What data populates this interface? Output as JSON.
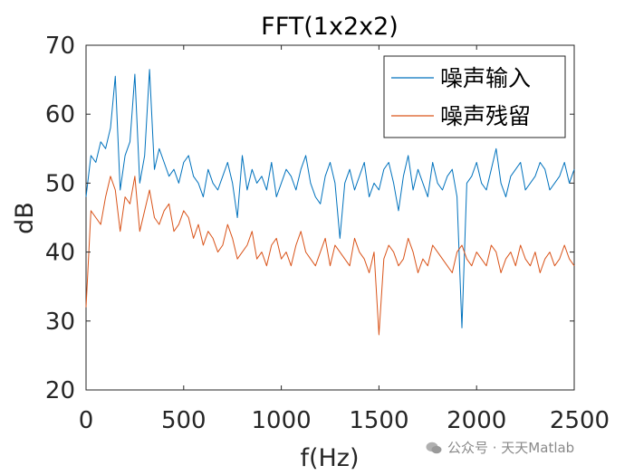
{
  "chart_data": {
    "type": "line",
    "title": "FFT(1x2x2)",
    "xlabel": "f(Hz)",
    "ylabel": "dB",
    "xlim": [
      0,
      2500
    ],
    "ylim": [
      20,
      70
    ],
    "xticks": [
      "0",
      "500",
      "1000",
      "1500",
      "2000",
      "2500"
    ],
    "yticks": [
      "20",
      "30",
      "40",
      "50",
      "60",
      "70"
    ],
    "legend_position": "top-right",
    "x": [
      0,
      25,
      50,
      75,
      100,
      125,
      150,
      175,
      200,
      225,
      250,
      275,
      300,
      325,
      350,
      375,
      400,
      425,
      450,
      475,
      500,
      525,
      550,
      575,
      600,
      625,
      650,
      675,
      700,
      725,
      750,
      775,
      800,
      825,
      850,
      875,
      900,
      925,
      950,
      975,
      1000,
      1025,
      1050,
      1075,
      1100,
      1125,
      1150,
      1175,
      1200,
      1225,
      1250,
      1275,
      1300,
      1325,
      1350,
      1375,
      1400,
      1425,
      1450,
      1475,
      1500,
      1525,
      1550,
      1575,
      1600,
      1625,
      1650,
      1675,
      1700,
      1725,
      1750,
      1775,
      1800,
      1825,
      1850,
      1875,
      1900,
      1925,
      1950,
      1975,
      2000,
      2025,
      2050,
      2075,
      2100,
      2125,
      2150,
      2175,
      2200,
      2225,
      2250,
      2275,
      2300,
      2325,
      2350,
      2375,
      2400,
      2425,
      2450,
      2475,
      2500
    ],
    "series": [
      {
        "name": "噪声输入",
        "color": "#0072BD",
        "values": [
          48,
          54,
          53,
          56,
          55,
          58,
          65.5,
          49,
          54,
          56,
          65.8,
          50,
          54,
          66.5,
          52,
          55,
          53,
          51,
          52,
          50,
          53,
          54,
          51,
          50,
          48,
          52,
          50,
          49,
          51,
          53,
          50,
          45,
          54,
          49,
          52,
          50,
          51,
          49,
          53,
          48,
          50,
          52,
          51,
          49,
          52,
          54,
          50,
          48,
          47,
          51,
          53,
          50,
          42,
          50,
          52,
          49,
          51,
          53,
          48,
          50,
          49,
          52,
          53,
          50,
          46,
          51,
          54,
          49,
          52,
          50,
          48,
          53,
          50,
          49,
          51,
          52,
          48,
          29,
          50,
          51,
          53,
          50,
          49,
          52,
          55,
          50,
          48,
          51,
          52,
          53,
          49,
          50,
          51,
          53,
          52,
          49,
          50,
          51,
          53,
          50,
          52
        ]
      },
      {
        "name": "噪声残留",
        "color": "#D95319",
        "values": [
          32,
          46,
          45,
          44,
          48,
          51,
          49,
          43,
          48,
          47,
          51,
          43,
          46,
          49,
          45,
          44,
          46,
          47,
          43,
          44,
          46,
          45,
          42,
          44,
          41,
          43,
          42,
          40,
          41,
          44,
          42,
          39,
          40,
          41,
          43,
          39,
          40,
          38,
          41,
          42,
          39,
          40,
          38,
          41,
          43,
          40,
          39,
          38,
          40,
          42,
          38,
          41,
          40,
          39,
          38,
          42,
          40,
          39,
          37,
          40,
          28,
          39,
          41,
          40,
          38,
          39,
          42,
          40,
          37,
          39,
          38,
          41,
          40,
          39,
          38,
          37,
          40,
          41,
          39,
          38,
          40,
          39,
          38,
          41,
          40,
          37,
          39,
          40,
          38,
          41,
          39,
          38,
          40,
          37,
          39,
          40,
          38,
          39,
          41,
          39,
          38
        ]
      }
    ]
  },
  "watermark": {
    "text": "公众号 · 天天Matlab"
  }
}
